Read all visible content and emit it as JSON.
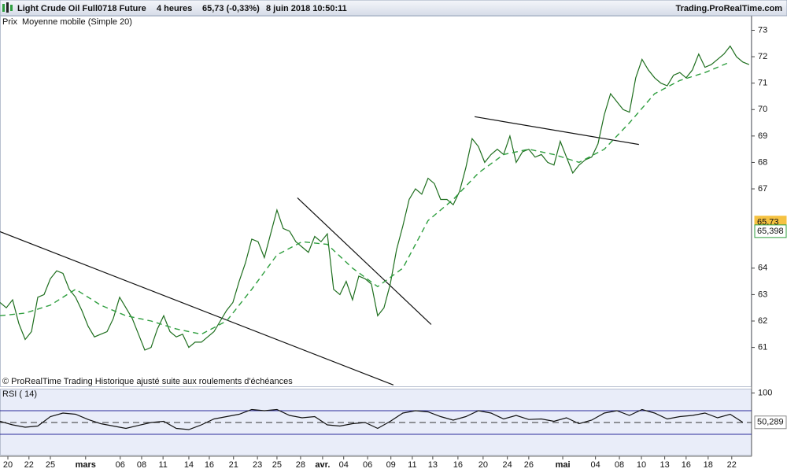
{
  "header": {
    "title": "Light Crude Oil Full0718 Future",
    "timeframe": "4 heures",
    "price": "65,73 (-0,33%)",
    "date": "8 juin 2018 10:50:11",
    "site": "Trading.ProRealTime.com"
  },
  "chart_data": [
    {
      "type": "line",
      "note": "© ProRealTime Trading  Historique ajusté suite aux roulements d'échéances",
      "xlim": [
        0,
        119.4
      ],
      "ylim": [
        59.5,
        73.55
      ],
      "yticks": [
        61,
        62,
        63,
        64,
        67,
        68,
        69,
        70,
        71,
        72,
        73
      ],
      "xticks": [
        {
          "value": 1.25,
          "label": "20"
        },
        {
          "value": 4.6,
          "label": "22"
        },
        {
          "value": 8,
          "label": "25"
        },
        {
          "value": 13.6,
          "label": "mars"
        },
        {
          "value": 19.1,
          "label": "06"
        },
        {
          "value": 22.5,
          "label": "08"
        },
        {
          "value": 25.9,
          "label": "11"
        },
        {
          "value": 30,
          "label": "14"
        },
        {
          "value": 33.25,
          "label": "16"
        },
        {
          "value": 37.1,
          "label": "21"
        },
        {
          "value": 40.9,
          "label": "23"
        },
        {
          "value": 44,
          "label": "25"
        },
        {
          "value": 47.75,
          "label": "28"
        },
        {
          "value": 51.25,
          "label": "avr."
        },
        {
          "value": 54.6,
          "label": "04"
        },
        {
          "value": 58.4,
          "label": "06"
        },
        {
          "value": 62.1,
          "label": "09"
        },
        {
          "value": 65.5,
          "label": "11"
        },
        {
          "value": 68.75,
          "label": "13"
        },
        {
          "value": 72.75,
          "label": "16"
        },
        {
          "value": 76.75,
          "label": "20"
        },
        {
          "value": 80.6,
          "label": "24"
        },
        {
          "value": 84,
          "label": "26"
        },
        {
          "value": 89.4,
          "label": "mai"
        },
        {
          "value": 94.6,
          "label": "04"
        },
        {
          "value": 98.4,
          "label": "08"
        },
        {
          "value": 101.9,
          "label": "10"
        },
        {
          "value": 105.6,
          "label": "13"
        },
        {
          "value": 109,
          "label": "16"
        },
        {
          "value": 112.5,
          "label": "18"
        },
        {
          "value": 116.25,
          "label": "22"
        }
      ],
      "series": [
        {
          "name": "Prix",
          "color": "#1e6e1e",
          "x": [
            0,
            1,
            2,
            3,
            4,
            5,
            6,
            7,
            8,
            9,
            10,
            11,
            12,
            13,
            14,
            15,
            16,
            17,
            18,
            19,
            20,
            21,
            22,
            23,
            24,
            25,
            26,
            27,
            28,
            29,
            30,
            31,
            32,
            33,
            34,
            35,
            36,
            37,
            38,
            39,
            40,
            41,
            42,
            43,
            44,
            45,
            46,
            47,
            48,
            49,
            50,
            51,
            52,
            53,
            54,
            55,
            56,
            57,
            58,
            59,
            60,
            61,
            62,
            63,
            64,
            65,
            66,
            67,
            68,
            69,
            70,
            71,
            72,
            73,
            74,
            75,
            76,
            77,
            78,
            79,
            80,
            81,
            82,
            83,
            84,
            85,
            86,
            87,
            88,
            89,
            90,
            91,
            92,
            93,
            94,
            95,
            96,
            97,
            98,
            99,
            100,
            101,
            102,
            103,
            104,
            105,
            106,
            107,
            108,
            109,
            110,
            111,
            112,
            113,
            114,
            115,
            116,
            117,
            118,
            119
          ],
          "values": [
            62.7,
            62.5,
            62.8,
            61.9,
            61.3,
            61.6,
            62.9,
            63.0,
            63.6,
            63.9,
            63.8,
            63.2,
            62.9,
            62.4,
            61.8,
            61.4,
            61.5,
            61.6,
            62.1,
            62.9,
            62.5,
            62.1,
            61.5,
            60.9,
            61.0,
            61.7,
            62.2,
            61.6,
            61.4,
            61.5,
            61.0,
            61.2,
            61.2,
            61.4,
            61.6,
            62.0,
            62.4,
            62.7,
            63.5,
            64.2,
            65.1,
            65.0,
            64.4,
            65.3,
            66.2,
            65.5,
            65.4,
            65.0,
            64.8,
            64.6,
            65.2,
            65.0,
            65.3,
            63.2,
            63.0,
            63.5,
            62.8,
            63.7,
            63.6,
            63.4,
            62.2,
            62.5,
            63.4,
            64.7,
            65.6,
            66.6,
            67.0,
            66.8,
            67.4,
            67.2,
            66.6,
            66.6,
            66.4,
            66.9,
            67.8,
            68.9,
            68.6,
            68.0,
            68.3,
            68.5,
            68.3,
            69.0,
            68.0,
            68.4,
            68.5,
            68.2,
            68.3,
            68.0,
            67.9,
            68.8,
            68.2,
            67.6,
            67.9,
            68.1,
            68.2,
            68.7,
            69.8,
            70.6,
            70.3,
            70.0,
            69.9,
            71.2,
            71.9,
            71.5,
            71.2,
            71.0,
            70.9,
            71.3,
            71.4,
            71.2,
            71.5,
            72.1,
            71.6,
            71.7,
            71.9,
            72.1,
            72.4,
            72.0,
            71.8,
            71.7
          ]
        },
        {
          "name": "Moyenne mobile (Simple 20)",
          "color": "#2e9e3e",
          "dashed": true,
          "x": [
            0,
            4,
            8,
            12,
            16,
            20,
            24,
            28,
            32,
            36,
            40,
            44,
            48,
            52,
            56,
            60,
            64,
            68,
            72,
            76,
            80,
            84,
            88,
            92,
            96,
            100,
            104,
            108,
            112,
            116
          ],
          "values": [
            62.2,
            62.3,
            62.6,
            63.2,
            62.6,
            62.2,
            62.0,
            61.7,
            61.5,
            62.0,
            63.2,
            64.5,
            65.0,
            64.9,
            64.0,
            63.3,
            64.0,
            65.8,
            66.6,
            67.6,
            68.3,
            68.5,
            68.3,
            68.0,
            68.5,
            69.5,
            70.6,
            71.1,
            71.4,
            71.8
          ]
        }
      ],
      "trendlines": [
        {
          "x": [
            0,
            62.5
          ],
          "y": [
            65.38,
            59.58
          ]
        },
        {
          "x": [
            47.25,
            68.5
          ],
          "y": [
            66.66,
            61.87
          ]
        },
        {
          "x": [
            75.4,
            101.5
          ],
          "y": [
            69.73,
            68.68
          ]
        }
      ],
      "price_labels": [
        {
          "value": 65.73,
          "label": "65,73",
          "color": "#f5c242"
        },
        {
          "value": 65.398,
          "label": "65,398",
          "color": "#2e9e3e"
        }
      ]
    },
    {
      "type": "line",
      "title": "RSI ( 14)",
      "xlim": [
        0,
        119.4
      ],
      "ylim": [
        -4.7,
        106
      ],
      "yticks": [
        100
      ],
      "levels": [
        30,
        50,
        70
      ],
      "series": [
        {
          "color": "#111111",
          "x": [
            0,
            2,
            4,
            6,
            8,
            10,
            12,
            14,
            16,
            18,
            20,
            22,
            24,
            26,
            28,
            30,
            32,
            34,
            36,
            38,
            40,
            42,
            44,
            46,
            48,
            50,
            52,
            54,
            56,
            58,
            60,
            62,
            64,
            66,
            68,
            70,
            72,
            74,
            76,
            78,
            80,
            82,
            84,
            86,
            88,
            90,
            92,
            94,
            96,
            98,
            100,
            102,
            104,
            106,
            108,
            110,
            112,
            114,
            116,
            118
          ],
          "values": [
            52,
            46,
            42,
            44,
            60,
            66,
            64,
            55,
            48,
            44,
            40,
            45,
            50,
            52,
            40,
            38,
            46,
            56,
            60,
            64,
            72,
            70,
            72,
            62,
            58,
            60,
            46,
            44,
            48,
            50,
            40,
            52,
            66,
            70,
            68,
            60,
            54,
            60,
            70,
            66,
            56,
            62,
            55,
            56,
            52,
            58,
            48,
            54,
            66,
            70,
            62,
            72,
            66,
            56,
            60,
            62,
            66,
            58,
            64,
            50.289
          ]
        }
      ],
      "last_label": {
        "value": 50.289,
        "label": "50,289"
      }
    }
  ]
}
